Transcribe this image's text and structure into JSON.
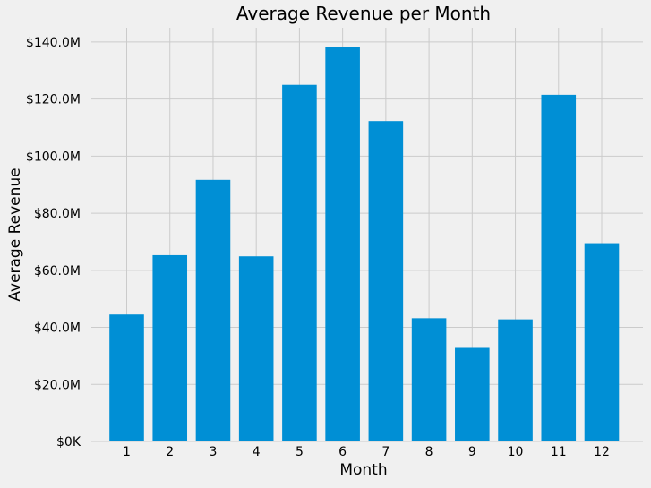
{
  "chart_data": {
    "type": "bar",
    "title": "Average Revenue per Month",
    "xlabel": "Month",
    "ylabel": "Average Revenue",
    "categories": [
      "1",
      "2",
      "3",
      "4",
      "5",
      "6",
      "7",
      "8",
      "9",
      "10",
      "11",
      "12"
    ],
    "values": [
      44.5,
      65.3,
      91.7,
      64.9,
      125.0,
      138.3,
      112.3,
      43.2,
      32.8,
      42.8,
      121.5,
      69.5
    ],
    "value_unit": "$M",
    "ylim": [
      0,
      145
    ],
    "y_ticks": [
      0,
      20,
      40,
      60,
      80,
      100,
      120,
      140
    ],
    "y_tick_labels": [
      "$0K",
      "$20.0M",
      "$40.0M",
      "$60.0M",
      "$80.0M",
      "$100.0M",
      "$120.0M",
      "$140.0M"
    ],
    "grid": true,
    "legend": "none",
    "colors": {
      "bar": "#008fd5",
      "background": "#f0f0f0",
      "grid": "#cbcbcb"
    }
  }
}
